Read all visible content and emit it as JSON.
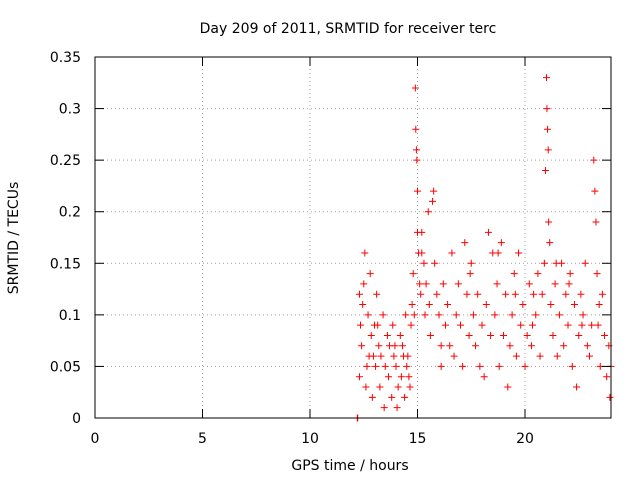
{
  "chart_data": {
    "type": "scatter",
    "title": "Day 209 of 2011, SRMTID for receiver terc",
    "xlabel": "GPS time / hours",
    "ylabel": "SRMTID / TECUs",
    "xlim": [
      0,
      24
    ],
    "ylim": [
      0,
      0.35
    ],
    "xticks": [
      0,
      5,
      10,
      15,
      20
    ],
    "xtick_labels": [
      "0",
      "5",
      "10",
      "15",
      "20"
    ],
    "yticks": [
      0,
      0.05,
      0.1,
      0.15,
      0.2,
      0.25,
      0.3,
      0.35
    ],
    "ytick_labels": [
      "0",
      "0.05",
      "0.1",
      "0.15",
      "0.2",
      "0.25",
      "0.3",
      "0.35"
    ],
    "grid": true,
    "marker": "+",
    "series_color": "#ff0000",
    "axis_color": "#000000",
    "grid_color": "#a0a0a0",
    "series": [
      {
        "name": "SRMTID",
        "points": [
          [
            12.2,
            0.0
          ],
          [
            12.22,
            0.0
          ],
          [
            12.3,
            0.12
          ],
          [
            12.3,
            0.04
          ],
          [
            12.35,
            0.09
          ],
          [
            12.4,
            0.07
          ],
          [
            12.45,
            0.11
          ],
          [
            12.5,
            0.13
          ],
          [
            12.55,
            0.16
          ],
          [
            12.6,
            0.03
          ],
          [
            12.65,
            0.05
          ],
          [
            12.7,
            0.1
          ],
          [
            12.75,
            0.06
          ],
          [
            12.8,
            0.14
          ],
          [
            12.85,
            0.08
          ],
          [
            12.9,
            0.02
          ],
          [
            13.0,
            0.09
          ],
          [
            13.05,
            0.05
          ],
          [
            13.1,
            0.12
          ],
          [
            13.2,
            0.07
          ],
          [
            13.25,
            0.03
          ],
          [
            13.3,
            0.06
          ],
          [
            13.4,
            0.1
          ],
          [
            13.45,
            0.01
          ],
          [
            13.5,
            0.05
          ],
          [
            13.6,
            0.08
          ],
          [
            13.65,
            0.04
          ],
          [
            13.7,
            0.07
          ],
          [
            13.8,
            0.02
          ],
          [
            13.85,
            0.09
          ],
          [
            13.9,
            0.06
          ],
          [
            14.0,
            0.05
          ],
          [
            14.05,
            0.01
          ],
          [
            14.1,
            0.03
          ],
          [
            14.2,
            0.08
          ],
          [
            14.25,
            0.04
          ],
          [
            14.3,
            0.07
          ],
          [
            14.4,
            0.02
          ],
          [
            14.45,
            0.1
          ],
          [
            14.5,
            0.05
          ],
          [
            14.55,
            0.06
          ],
          [
            14.6,
            0.04
          ],
          [
            14.7,
            0.09
          ],
          [
            14.75,
            0.11
          ],
          [
            14.8,
            0.14
          ],
          [
            14.85,
            0.1
          ],
          [
            14.9,
            0.32
          ],
          [
            14.92,
            0.28
          ],
          [
            14.95,
            0.26
          ],
          [
            14.97,
            0.25
          ],
          [
            15.0,
            0.22
          ],
          [
            15.0,
            0.18
          ],
          [
            15.05,
            0.16
          ],
          [
            15.1,
            0.13
          ],
          [
            15.15,
            0.12
          ],
          [
            15.2,
            0.16
          ],
          [
            15.3,
            0.15
          ],
          [
            15.35,
            0.1
          ],
          [
            15.4,
            0.13
          ],
          [
            15.5,
            0.2
          ],
          [
            15.6,
            0.08
          ],
          [
            15.7,
            0.21
          ],
          [
            15.75,
            0.22
          ],
          [
            15.8,
            0.15
          ],
          [
            15.9,
            0.12
          ],
          [
            16.0,
            0.1
          ],
          [
            16.1,
            0.07
          ],
          [
            16.2,
            0.13
          ],
          [
            16.3,
            0.09
          ],
          [
            16.4,
            0.11
          ],
          [
            16.5,
            0.07
          ],
          [
            16.6,
            0.16
          ],
          [
            16.7,
            0.06
          ],
          [
            16.8,
            0.1
          ],
          [
            16.9,
            0.13
          ],
          [
            17.0,
            0.09
          ],
          [
            17.1,
            0.05
          ],
          [
            17.2,
            0.17
          ],
          [
            17.3,
            0.12
          ],
          [
            17.4,
            0.08
          ],
          [
            17.5,
            0.15
          ],
          [
            17.6,
            0.1
          ],
          [
            17.7,
            0.07
          ],
          [
            17.8,
            0.12
          ],
          [
            17.9,
            0.05
          ],
          [
            18.0,
            0.09
          ],
          [
            18.1,
            0.04
          ],
          [
            18.2,
            0.11
          ],
          [
            18.3,
            0.18
          ],
          [
            18.4,
            0.08
          ],
          [
            18.5,
            0.16
          ],
          [
            18.6,
            0.1
          ],
          [
            18.7,
            0.13
          ],
          [
            18.8,
            0.05
          ],
          [
            18.9,
            0.17
          ],
          [
            19.0,
            0.08
          ],
          [
            19.1,
            0.12
          ],
          [
            19.2,
            0.03
          ],
          [
            19.3,
            0.07
          ],
          [
            19.4,
            0.1
          ],
          [
            19.5,
            0.14
          ],
          [
            19.6,
            0.06
          ],
          [
            19.7,
            0.16
          ],
          [
            19.8,
            0.09
          ],
          [
            19.9,
            0.11
          ],
          [
            20.0,
            0.05
          ],
          [
            20.1,
            0.08
          ],
          [
            20.2,
            0.13
          ],
          [
            20.3,
            0.07
          ],
          [
            20.4,
            0.12
          ],
          [
            20.5,
            0.1
          ],
          [
            20.6,
            0.14
          ],
          [
            20.7,
            0.06
          ],
          [
            20.8,
            0.12
          ],
          [
            20.9,
            0.15
          ],
          [
            20.95,
            0.24
          ],
          [
            21.0,
            0.33
          ],
          [
            21.02,
            0.3
          ],
          [
            21.05,
            0.28
          ],
          [
            21.08,
            0.26
          ],
          [
            21.1,
            0.19
          ],
          [
            21.15,
            0.17
          ],
          [
            21.2,
            0.11
          ],
          [
            21.3,
            0.08
          ],
          [
            21.4,
            0.13
          ],
          [
            21.5,
            0.06
          ],
          [
            21.6,
            0.1
          ],
          [
            21.7,
            0.15
          ],
          [
            21.8,
            0.07
          ],
          [
            21.9,
            0.12
          ],
          [
            22.0,
            0.09
          ],
          [
            22.1,
            0.14
          ],
          [
            22.2,
            0.05
          ],
          [
            22.3,
            0.11
          ],
          [
            22.4,
            0.03
          ],
          [
            22.5,
            0.08
          ],
          [
            22.6,
            0.12
          ],
          [
            22.7,
            0.1
          ],
          [
            22.8,
            0.15
          ],
          [
            22.9,
            0.07
          ],
          [
            23.0,
            0.06
          ],
          [
            23.1,
            0.09
          ],
          [
            23.2,
            0.25
          ],
          [
            23.25,
            0.22
          ],
          [
            23.3,
            0.19
          ],
          [
            23.35,
            0.14
          ],
          [
            23.4,
            0.09
          ],
          [
            23.5,
            0.05
          ],
          [
            23.6,
            0.12
          ],
          [
            23.7,
            0.08
          ],
          [
            23.8,
            0.04
          ],
          [
            23.9,
            0.07
          ],
          [
            23.95,
            0.02
          ],
          [
            24.0,
            0.05
          ],
          [
            15.2,
            0.18
          ],
          [
            16.1,
            0.05
          ],
          [
            17.45,
            0.14
          ],
          [
            18.75,
            0.16
          ],
          [
            19.55,
            0.12
          ],
          [
            20.35,
            0.09
          ],
          [
            21.45,
            0.15
          ],
          [
            22.05,
            0.13
          ],
          [
            22.65,
            0.09
          ],
          [
            23.45,
            0.11
          ],
          [
            13.15,
            0.09
          ],
          [
            13.95,
            0.07
          ],
          [
            14.65,
            0.03
          ],
          [
            12.95,
            0.06
          ],
          [
            14.35,
            0.06
          ],
          [
            15.55,
            0.11
          ]
        ]
      }
    ]
  }
}
